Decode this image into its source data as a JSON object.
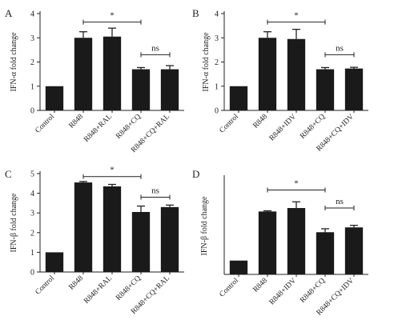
{
  "figure": {
    "accent_color": "#1a1a1a",
    "chart_data": [
      {
        "panel": "A",
        "type": "bar",
        "ylabel": "IFN-α fold change",
        "categories": [
          "Control",
          "R848",
          "R848+RAL",
          "R848+CQ",
          "R848+CQ+RAL"
        ],
        "values": [
          1.0,
          3.0,
          3.05,
          1.7,
          1.7
        ],
        "errors": [
          0,
          0.25,
          0.35,
          0.07,
          0.15
        ],
        "ylim": [
          0,
          4
        ],
        "yticks": [
          "0",
          "1",
          "2",
          "3",
          "4"
        ],
        "grid": false,
        "annotations": [
          {
            "from": 1,
            "to": 3,
            "label": "*",
            "y": 3.65
          },
          {
            "from": 3,
            "to": 4,
            "label": "ns",
            "y": 2.3
          }
        ]
      },
      {
        "panel": "B",
        "type": "bar",
        "ylabel": "IFN-α fold change",
        "categories": [
          "Control",
          "R848",
          "R848+IDV",
          "R848+CQ",
          "R848+CQ+IDV"
        ],
        "values": [
          1.0,
          3.0,
          2.95,
          1.7,
          1.73
        ],
        "errors": [
          0,
          0.25,
          0.4,
          0.07,
          0.05
        ],
        "ylim": [
          0,
          4
        ],
        "yticks": [
          "0",
          "1",
          "2",
          "3",
          "4"
        ],
        "grid": false,
        "annotations": [
          {
            "from": 1,
            "to": 3,
            "label": "*",
            "y": 3.65
          },
          {
            "from": 3,
            "to": 4,
            "label": "ns",
            "y": 2.3
          }
        ]
      },
      {
        "panel": "C",
        "type": "bar",
        "ylabel": "IFN-β fold change",
        "categories": [
          "Control",
          "R848",
          "R848+RAL",
          "R848+CQ",
          "R848+CQ+RAL"
        ],
        "values": [
          1.0,
          4.55,
          4.35,
          3.05,
          3.3
        ],
        "errors": [
          0,
          0.05,
          0.1,
          0.3,
          0.1
        ],
        "ylim": [
          0,
          5
        ],
        "yticks": [
          "0",
          "1",
          "2",
          "3",
          "4",
          "5"
        ],
        "grid": false,
        "annotations": [
          {
            "from": 1,
            "to": 3,
            "label": "*",
            "y": 4.85
          },
          {
            "from": 3,
            "to": 4,
            "label": "ns",
            "y": 3.8
          }
        ]
      },
      {
        "panel": "D",
        "type": "bar",
        "ylabel": "IFN-β fold change",
        "categories": [
          "Control",
          "R848",
          "R848+IDV",
          "R848+CQ",
          "R848+CQ+IDV"
        ],
        "values": [
          1.0,
          4.55,
          4.8,
          3.05,
          3.4
        ],
        "errors": [
          0,
          0.05,
          0.45,
          0.25,
          0.15
        ],
        "ylim": [
          0,
          7
        ],
        "yticks": [],
        "grid": false,
        "annotations": [
          {
            "from": 1,
            "to": 3,
            "label": "*",
            "y": 6.1
          },
          {
            "from": 3,
            "to": 4,
            "label": "ns",
            "y": 4.8
          }
        ]
      }
    ]
  }
}
